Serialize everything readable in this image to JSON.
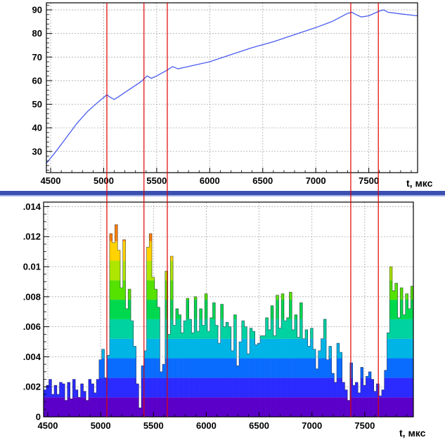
{
  "chart_data": [
    {
      "type": "line",
      "xlabel": "t, мкс",
      "xlim": [
        4460,
        7960
      ],
      "ylim": [
        21,
        93
      ],
      "xticks": [
        4500,
        5000,
        5500,
        6000,
        6500,
        7000,
        7500
      ],
      "yticks": [
        30,
        40,
        50,
        60,
        70,
        80,
        90
      ],
      "grid": true,
      "series": [
        {
          "color": "#4a5cf0",
          "x": [
            4460,
            4550,
            4650,
            4750,
            4850,
            4950,
            5030,
            5060,
            5100,
            5150,
            5250,
            5350,
            5410,
            5450,
            5500,
            5600,
            5650,
            5700,
            5800,
            6000,
            6200,
            6400,
            6600,
            6800,
            7000,
            7150,
            7300,
            7340,
            7380,
            7430,
            7500,
            7600,
            7640,
            7680,
            7800,
            7960
          ],
          "values": [
            25,
            30,
            36,
            42,
            47,
            51,
            54,
            53,
            52,
            53.5,
            56.5,
            59.5,
            62,
            61,
            62,
            64.5,
            66,
            65,
            66,
            68,
            71,
            74,
            76.5,
            79.5,
            82.5,
            85,
            88.5,
            89,
            88,
            87,
            87.5,
            89.5,
            90,
            89,
            88.3,
            87.5
          ]
        }
      ],
      "markers_x": [
        5030,
        5380,
        5600,
        7330,
        7590
      ]
    },
    {
      "type": "bar",
      "xlabel": "t, мкс",
      "xlim": [
        4460,
        7960
      ],
      "ylim": [
        0,
        0.0143
      ],
      "bin_width": 25,
      "xticks": [
        4500,
        5000,
        5500,
        6000,
        6500,
        7000,
        7500
      ],
      "yticks": [
        "0",
        ".002",
        ".004",
        ".006",
        ".008",
        "0.01",
        ".012",
        ".014"
      ],
      "ytick_values": [
        0,
        0.002,
        0.004,
        0.006,
        0.008,
        0.01,
        0.012,
        0.014
      ],
      "grid": true,
      "color_scale": [
        "#5a00c8",
        "#2b2bff",
        "#0a6cff",
        "#00b4e6",
        "#00d2a0",
        "#00d84e",
        "#56e200",
        "#aee600",
        "#ffd200",
        "#ff8000",
        "#e80000"
      ],
      "values": [
        0.0018,
        0.0021,
        0.0025,
        0.0015,
        0.0021,
        0.0015,
        0.0023,
        0.0022,
        0.0011,
        0.0023,
        0.0012,
        0.0025,
        0.0018,
        0.0013,
        0.0022,
        0.0017,
        0.0011,
        0.0025,
        0.0022,
        0.0016,
        0.0025,
        0.0038,
        0.0045,
        0.0026,
        0.0041,
        0.0122,
        0.0116,
        0.0128,
        0.0111,
        0.0086,
        0.0118,
        0.0072,
        0.0085,
        0.0064,
        0.0047,
        0.0022,
        0.0006,
        0.0034,
        0.0044,
        0.0113,
        0.0122,
        0.0093,
        0.0085,
        0.0073,
        0.003,
        0.0035,
        0.0097,
        0.0055,
        0.0107,
        0.0061,
        0.0072,
        0.0068,
        0.0056,
        0.0064,
        0.0079,
        0.0065,
        0.0056,
        0.008,
        0.0057,
        0.0072,
        0.0061,
        0.0082,
        0.0057,
        0.0066,
        0.0076,
        0.0061,
        0.0049,
        0.0075,
        0.006,
        0.0063,
        0.006,
        0.0044,
        0.0068,
        0.0034,
        0.005,
        0.0064,
        0.006,
        0.0042,
        0.0059,
        0.0057,
        0.0048,
        0.0049,
        0.0054,
        0.0054,
        0.0066,
        0.0058,
        0.0074,
        0.0054,
        0.0081,
        0.0059,
        0.0082,
        0.0064,
        0.0066,
        0.0083,
        0.0058,
        0.0068,
        0.0053,
        0.0076,
        0.0052,
        0.0058,
        0.0047,
        0.0059,
        0.0045,
        0.0032,
        0.0044,
        0.0052,
        0.0065,
        0.0038,
        0.0047,
        0.0029,
        0.0023,
        0.0049,
        0.0043,
        0.0023,
        0.0018,
        0.0011,
        0.0036,
        0.0021,
        0.0023,
        0.0016,
        0.0033,
        0.0021,
        0.0027,
        0.003,
        0.0025,
        0.0017,
        0.0022,
        0.0014,
        0.0018,
        0.0031,
        0.0056,
        0.01,
        0.0084,
        0.0089,
        0.0066,
        0.0086,
        0.0068,
        0.0082,
        0.0072,
        0.0087,
        0.007,
        0.0092,
        0.0065,
        0.0078
      ]
    }
  ]
}
